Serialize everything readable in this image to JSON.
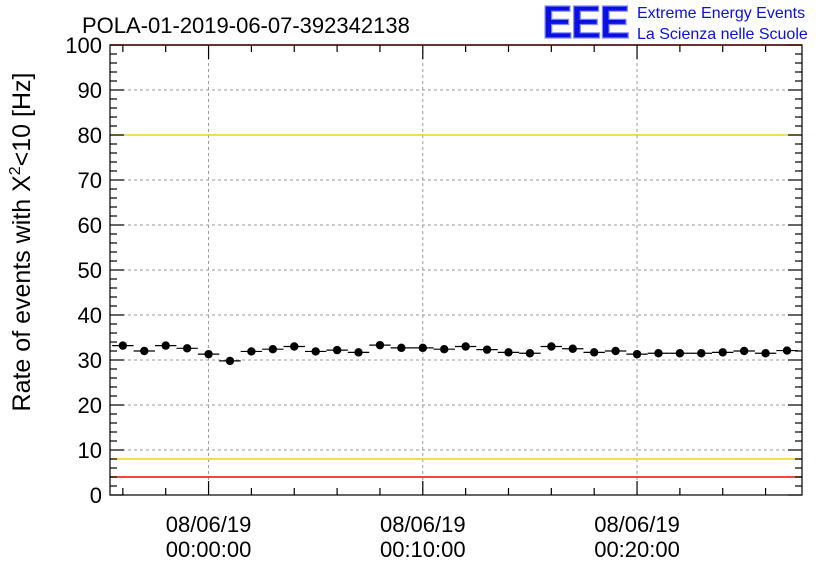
{
  "chart_data": {
    "type": "scatter",
    "title": "POLA-01-2019-06-07-392342138",
    "ylabel_prefix": "Rate of events with X",
    "ylabel_sup": "2",
    "ylabel_suffix": "<10 [Hz]",
    "xlabel": "",
    "ylim": [
      0,
      100
    ],
    "yticks": [
      0,
      10,
      20,
      30,
      40,
      50,
      60,
      70,
      80,
      90,
      100
    ],
    "grid": true,
    "x_unit": "minutes",
    "xlim": [
      -4.6,
      27.7
    ],
    "xticks": [
      {
        "x": 0,
        "date": "08/06/19",
        "time": "00:00:00"
      },
      {
        "x": 10,
        "date": "08/06/19",
        "time": "00:10:00"
      },
      {
        "x": 20,
        "date": "08/06/19",
        "time": "00:20:00"
      }
    ],
    "reference_lines": [
      {
        "y": 80,
        "color": "#f0d020"
      },
      {
        "y": 8,
        "color": "#f0d020"
      },
      {
        "y": 100,
        "color": "#ff0000"
      },
      {
        "y": 4,
        "color": "#ff0000"
      }
    ],
    "series": [
      {
        "marker_color": "#000000",
        "x": [
          -4,
          -3,
          -2,
          -1,
          0,
          1,
          2,
          3,
          4,
          5,
          6,
          7,
          8,
          9,
          10,
          11,
          12,
          13,
          14,
          15,
          16,
          17,
          18,
          19,
          20,
          21,
          22,
          23,
          24,
          25,
          26,
          27
        ],
        "y": [
          33.2,
          32.0,
          33.2,
          32.6,
          31.3,
          29.8,
          31.9,
          32.4,
          33.0,
          31.9,
          32.2,
          31.7,
          33.3,
          32.7,
          32.7,
          32.4,
          33.0,
          32.3,
          31.7,
          31.5,
          33.0,
          32.5,
          31.7,
          32.0,
          31.3,
          31.5,
          31.5,
          31.5,
          31.7,
          32.0,
          31.5,
          32.1
        ]
      }
    ]
  },
  "logo": {
    "mark": "EEE",
    "line1": "Extreme Energy Events",
    "line2": "La Scienza nelle Scuole"
  }
}
